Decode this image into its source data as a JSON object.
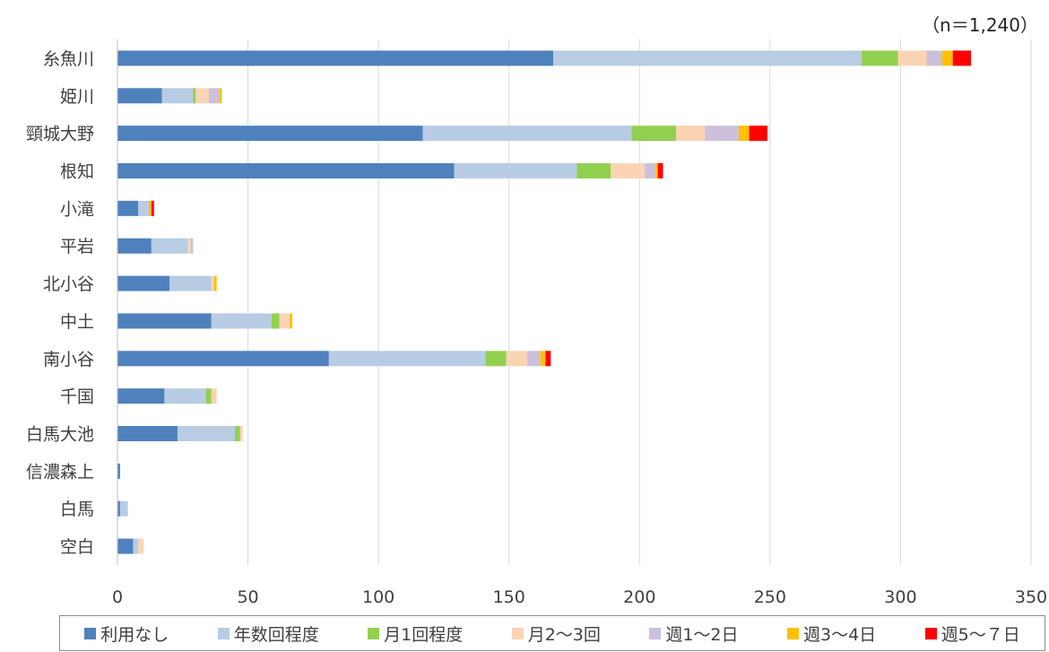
{
  "note": "（n＝1,240）",
  "chart_data": {
    "type": "bar",
    "orientation": "horizontal",
    "stacked": true,
    "categories": [
      "糸魚川",
      "姫川",
      "頸城大野",
      "根知",
      "小滝",
      "平岩",
      "北小谷",
      "中土",
      "南小谷",
      "千国",
      "白馬大池",
      "信濃森上",
      "白馬",
      "空白"
    ],
    "xlim": [
      0,
      350
    ],
    "xticks": [
      0,
      50,
      100,
      150,
      200,
      250,
      300,
      350
    ],
    "grid": "vertical",
    "legend_position": "bottom",
    "series": [
      {
        "name": "利用なし",
        "color": "#4f81bd",
        "values": [
          167,
          17,
          117,
          129,
          8,
          13,
          20,
          36,
          81,
          18,
          23,
          1,
          1,
          6
        ]
      },
      {
        "name": "年数回程度",
        "color": "#b8cce4",
        "values": [
          118,
          12,
          80,
          47,
          4,
          14,
          16,
          23,
          60,
          16,
          22,
          0,
          3,
          2
        ]
      },
      {
        "name": "月1回程度",
        "color": "#92d050",
        "values": [
          14,
          1,
          17,
          13,
          0,
          0,
          0,
          3,
          8,
          2,
          2,
          0,
          0,
          0
        ]
      },
      {
        "name": "月2～3回",
        "color": "#fbd4b4",
        "values": [
          11,
          5,
          11,
          13,
          0,
          1,
          1,
          4,
          8,
          2,
          1,
          0,
          0,
          2
        ]
      },
      {
        "name": "週1～2日",
        "color": "#ccc0da",
        "values": [
          6,
          4,
          13,
          4,
          0,
          1,
          0,
          0,
          5,
          0,
          0,
          0,
          0,
          0
        ]
      },
      {
        "name": "週3～4日",
        "color": "#ffc000",
        "values": [
          4,
          1,
          4,
          1,
          1,
          0,
          1,
          1,
          2,
          0,
          0,
          0,
          0,
          0
        ]
      },
      {
        "name": "週5～７日",
        "color": "#ff0000",
        "values": [
          7,
          0,
          7,
          2,
          1,
          0,
          0,
          0,
          2,
          0,
          0,
          0,
          0,
          0
        ]
      }
    ]
  }
}
